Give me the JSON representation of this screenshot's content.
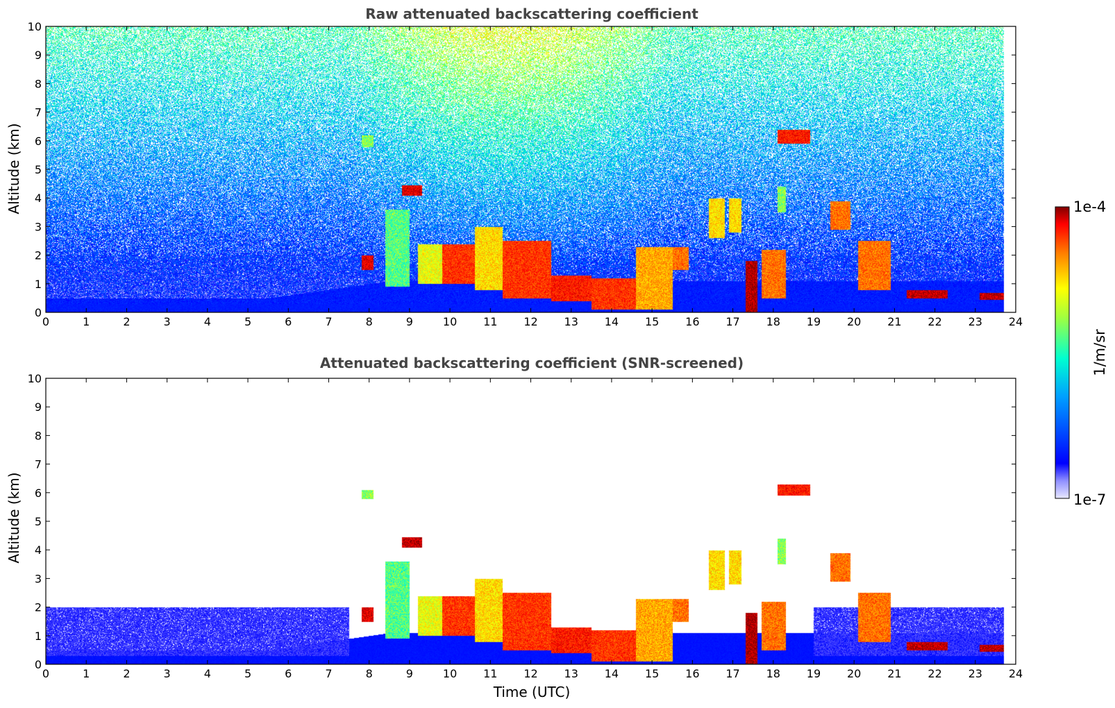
{
  "chart_data": [
    {
      "type": "heatmap",
      "title": "Raw attenuated backscattering coefficient",
      "xlabel": "",
      "ylabel": "Altitude (km)",
      "xlim": [
        0,
        24
      ],
      "ylim": [
        0,
        10
      ],
      "x_ticks": [
        "0",
        "1",
        "2",
        "3",
        "4",
        "5",
        "6",
        "7",
        "8",
        "9",
        "10",
        "11",
        "12",
        "13",
        "14",
        "15",
        "16",
        "17",
        "18",
        "19",
        "20",
        "21",
        "22",
        "23",
        "24"
      ],
      "y_ticks": [
        "0",
        "1",
        "2",
        "3",
        "4",
        "5",
        "6",
        "7",
        "8",
        "9",
        "10"
      ],
      "data_end_time": 23.7,
      "features": [
        {
          "t0": 7.8,
          "t1": 8.1,
          "z0": 1.5,
          "z1": 2.0,
          "level": 0.95
        },
        {
          "t0": 8.8,
          "t1": 9.3,
          "z0": 4.1,
          "z1": 4.45,
          "level": 0.95
        },
        {
          "t0": 7.8,
          "t1": 8.1,
          "z0": 5.8,
          "z1": 6.2,
          "level": 0.6
        },
        {
          "t0": 8.4,
          "t1": 9.0,
          "z0": 0.9,
          "z1": 3.6,
          "level": 0.55
        },
        {
          "t0": 9.2,
          "t1": 9.8,
          "z0": 1.0,
          "z1": 2.4,
          "level": 0.7
        },
        {
          "t0": 9.8,
          "t1": 10.6,
          "z0": 1.0,
          "z1": 2.4,
          "level": 0.9
        },
        {
          "t0": 10.6,
          "t1": 11.3,
          "z0": 0.8,
          "z1": 3.0,
          "level": 0.75
        },
        {
          "t0": 11.3,
          "t1": 12.5,
          "z0": 0.5,
          "z1": 2.5,
          "level": 0.9
        },
        {
          "t0": 12.5,
          "t1": 13.5,
          "z0": 0.4,
          "z1": 1.3,
          "level": 0.92
        },
        {
          "t0": 13.5,
          "t1": 14.6,
          "z0": 0.1,
          "z1": 1.2,
          "level": 0.9
        },
        {
          "t0": 14.6,
          "t1": 15.5,
          "z0": 0.1,
          "z1": 2.3,
          "level": 0.8
        },
        {
          "t0": 15.5,
          "t1": 15.9,
          "z0": 1.5,
          "z1": 2.3,
          "level": 0.85
        },
        {
          "t0": 16.4,
          "t1": 16.8,
          "z0": 2.6,
          "z1": 4.0,
          "level": 0.75
        },
        {
          "t0": 16.9,
          "t1": 17.2,
          "z0": 2.8,
          "z1": 4.0,
          "level": 0.75
        },
        {
          "t0": 17.3,
          "t1": 17.6,
          "z0": 0.0,
          "z1": 1.8,
          "level": 0.98
        },
        {
          "t0": 17.7,
          "t1": 18.3,
          "z0": 0.5,
          "z1": 2.2,
          "level": 0.85
        },
        {
          "t0": 18.1,
          "t1": 18.9,
          "z0": 5.9,
          "z1": 6.4,
          "level": 0.92
        },
        {
          "t0": 18.1,
          "t1": 18.3,
          "z0": 3.5,
          "z1": 4.4,
          "level": 0.6
        },
        {
          "t0": 19.4,
          "t1": 19.9,
          "z0": 2.9,
          "z1": 3.9,
          "level": 0.85
        },
        {
          "t0": 20.1,
          "t1": 20.9,
          "z0": 0.8,
          "z1": 2.5,
          "level": 0.85
        },
        {
          "t0": 21.3,
          "t1": 22.3,
          "z0": 0.5,
          "z1": 0.8,
          "level": 0.97
        },
        {
          "t0": 23.1,
          "t1": 23.7,
          "z0": 0.45,
          "z1": 0.7,
          "level": 0.97
        }
      ]
    },
    {
      "type": "heatmap",
      "title": "Attenuated backscattering coefficient (SNR-screened)",
      "xlabel": "Time (UTC)",
      "ylabel": "Altitude (km)",
      "xlim": [
        0,
        24
      ],
      "ylim": [
        0,
        10
      ],
      "x_ticks": [
        "0",
        "1",
        "2",
        "3",
        "4",
        "5",
        "6",
        "7",
        "8",
        "9",
        "10",
        "11",
        "12",
        "13",
        "14",
        "15",
        "16",
        "17",
        "18",
        "19",
        "20",
        "21",
        "22",
        "23",
        "24"
      ],
      "y_ticks": [
        "0",
        "1",
        "2",
        "3",
        "4",
        "5",
        "6",
        "7",
        "8",
        "9",
        "10"
      ],
      "data_end_time": 23.7,
      "boundary_layer_top_km": 2.0,
      "features": [
        {
          "t0": 7.8,
          "t1": 8.1,
          "z0": 1.5,
          "z1": 2.0,
          "level": 0.95
        },
        {
          "t0": 8.8,
          "t1": 9.3,
          "z0": 4.1,
          "z1": 4.45,
          "level": 0.97
        },
        {
          "t0": 7.8,
          "t1": 8.1,
          "z0": 5.8,
          "z1": 6.1,
          "level": 0.6
        },
        {
          "t0": 8.4,
          "t1": 9.0,
          "z0": 0.9,
          "z1": 3.6,
          "level": 0.55
        },
        {
          "t0": 9.2,
          "t1": 9.8,
          "z0": 1.0,
          "z1": 2.4,
          "level": 0.7
        },
        {
          "t0": 9.8,
          "t1": 10.6,
          "z0": 1.0,
          "z1": 2.4,
          "level": 0.9
        },
        {
          "t0": 10.6,
          "t1": 11.3,
          "z0": 0.8,
          "z1": 3.0,
          "level": 0.75
        },
        {
          "t0": 11.3,
          "t1": 12.5,
          "z0": 0.5,
          "z1": 2.5,
          "level": 0.9
        },
        {
          "t0": 12.5,
          "t1": 13.5,
          "z0": 0.4,
          "z1": 1.3,
          "level": 0.92
        },
        {
          "t0": 13.5,
          "t1": 14.6,
          "z0": 0.1,
          "z1": 1.2,
          "level": 0.9
        },
        {
          "t0": 14.6,
          "t1": 15.5,
          "z0": 0.1,
          "z1": 2.3,
          "level": 0.8
        },
        {
          "t0": 15.5,
          "t1": 15.9,
          "z0": 1.5,
          "z1": 2.3,
          "level": 0.85
        },
        {
          "t0": 16.4,
          "t1": 16.8,
          "z0": 2.6,
          "z1": 4.0,
          "level": 0.75
        },
        {
          "t0": 16.9,
          "t1": 17.2,
          "z0": 2.8,
          "z1": 4.0,
          "level": 0.75
        },
        {
          "t0": 17.3,
          "t1": 17.6,
          "z0": 0.0,
          "z1": 1.8,
          "level": 0.98
        },
        {
          "t0": 17.7,
          "t1": 18.3,
          "z0": 0.5,
          "z1": 2.2,
          "level": 0.85
        },
        {
          "t0": 18.1,
          "t1": 18.9,
          "z0": 5.9,
          "z1": 6.3,
          "level": 0.92
        },
        {
          "t0": 18.1,
          "t1": 18.3,
          "z0": 3.5,
          "z1": 4.4,
          "level": 0.6
        },
        {
          "t0": 19.4,
          "t1": 19.9,
          "z0": 2.9,
          "z1": 3.9,
          "level": 0.85
        },
        {
          "t0": 20.1,
          "t1": 20.9,
          "z0": 0.8,
          "z1": 2.5,
          "level": 0.85
        },
        {
          "t0": 21.3,
          "t1": 22.3,
          "z0": 0.5,
          "z1": 0.8,
          "level": 0.97
        },
        {
          "t0": 23.1,
          "t1": 23.7,
          "z0": 0.45,
          "z1": 0.7,
          "level": 0.97
        }
      ]
    }
  ],
  "colorbar": {
    "max_label": "1e-4",
    "min_label": "1e-7",
    "unit_label": "1/m/sr",
    "colormap": "jet",
    "scale": "log"
  }
}
